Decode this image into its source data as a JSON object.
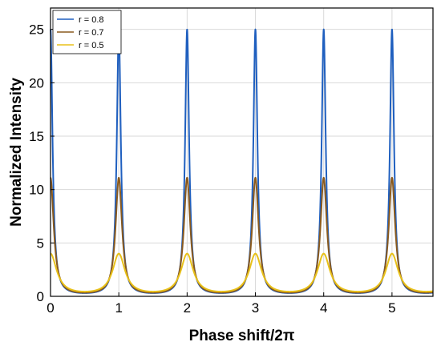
{
  "chart_data": {
    "type": "line",
    "title": "",
    "xlabel": "Phase shift/2π",
    "ylabel": "Normalized Intensity",
    "xlim": [
      0,
      5.6
    ],
    "ylim": [
      0,
      27
    ],
    "xticks": [
      0,
      1,
      2,
      3,
      4,
      5
    ],
    "yticks": [
      0,
      5,
      10,
      15,
      20,
      25
    ],
    "grid": true,
    "legend_position": "top-left",
    "series": [
      {
        "name": "r = 0.8",
        "color": "#1f5fbf",
        "peak": 25,
        "min": 0.3086
      },
      {
        "name": "r = 0.7",
        "color": "#8a5a1e",
        "peak": 11.11,
        "min": 0.346
      },
      {
        "name": "r = 0.5",
        "color": "#e8c11a",
        "peak": 4,
        "min": 0.4444
      }
    ]
  }
}
